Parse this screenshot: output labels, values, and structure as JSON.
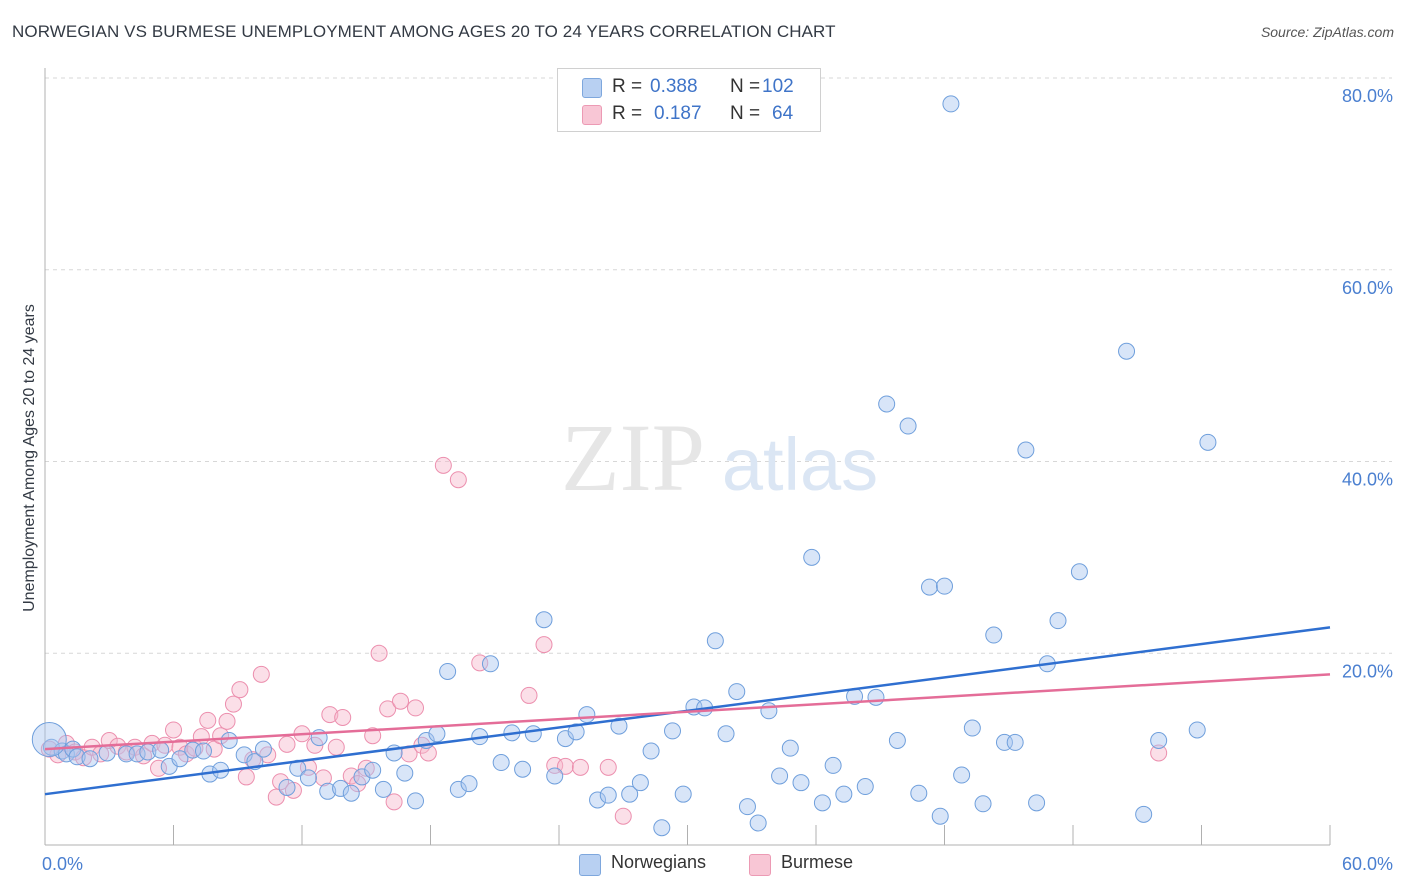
{
  "title": "NORWEGIAN VS BURMESE UNEMPLOYMENT AMONG AGES 20 TO 24 YEARS CORRELATION CHART",
  "source": "Source: ZipAtlas.com",
  "watermark": {
    "zip": "ZIP",
    "atlas": "atlas"
  },
  "legend_top": [
    {
      "r_label": "R =",
      "r_value": "0.388",
      "n_label": "N =",
      "n_value": "102"
    },
    {
      "r_label": "R =",
      "r_value": "0.187",
      "n_label": "N =",
      "n_value": "64"
    }
  ],
  "colors": {
    "norwegian_fill": "#a9c6f0",
    "norwegian_stroke": "#6f9fdc",
    "norwegian_line": "#2f6fd0",
    "burmese_fill": "#f6b8cb",
    "burmese_stroke": "#ec8fae",
    "burmese_line": "#e46d98",
    "tick_label": "#4a7fd0",
    "grid": "#d7d7d7"
  },
  "chart_data": {
    "type": "scatter",
    "title": "NORWEGIAN VS BURMESE UNEMPLOYMENT AMONG AGES 20 TO 24 YEARS CORRELATION CHART",
    "xlabel": "",
    "ylabel": "Unemployment Among Ages 20 to 24 years",
    "xlim": [
      0,
      60
    ],
    "ylim": [
      0,
      80
    ],
    "x_tick_labels": [
      "0.0%",
      "60.0%"
    ],
    "y_ticks": [
      20,
      40,
      60,
      80
    ],
    "y_tick_labels": [
      "20.0%",
      "40.0%",
      "60.0%",
      "80.0%"
    ],
    "grid": true,
    "legend_position": "bottom-center",
    "series": [
      {
        "name": "Norwegians",
        "r": 0.388,
        "n": 102,
        "trend": [
          [
            0,
            5.3
          ],
          [
            60,
            22.7
          ]
        ],
        "points": [
          [
            0.3,
            10.2
          ],
          [
            0.8,
            9.8
          ],
          [
            1.0,
            9.5
          ],
          [
            1.3,
            10.0
          ],
          [
            1.5,
            9.2
          ],
          [
            2.1,
            9.0
          ],
          [
            2.9,
            9.6
          ],
          [
            3.8,
            9.5
          ],
          [
            4.3,
            9.5
          ],
          [
            4.8,
            9.7
          ],
          [
            5.4,
            9.9
          ],
          [
            5.8,
            8.2
          ],
          [
            6.3,
            9.0
          ],
          [
            6.9,
            9.9
          ],
          [
            7.4,
            9.8
          ],
          [
            7.7,
            7.4
          ],
          [
            8.2,
            7.8
          ],
          [
            8.6,
            10.9
          ],
          [
            9.3,
            9.4
          ],
          [
            9.8,
            8.7
          ],
          [
            10.2,
            10.0
          ],
          [
            11.3,
            6.0
          ],
          [
            11.8,
            8.0
          ],
          [
            12.3,
            7.0
          ],
          [
            12.8,
            11.2
          ],
          [
            13.2,
            5.6
          ],
          [
            13.8,
            5.9
          ],
          [
            14.3,
            5.4
          ],
          [
            14.8,
            7.1
          ],
          [
            15.3,
            7.8
          ],
          [
            15.8,
            5.8
          ],
          [
            16.3,
            9.6
          ],
          [
            16.8,
            7.5
          ],
          [
            17.3,
            4.6
          ],
          [
            17.8,
            10.9
          ],
          [
            18.3,
            11.6
          ],
          [
            18.8,
            18.1
          ],
          [
            19.3,
            5.8
          ],
          [
            19.8,
            6.4
          ],
          [
            20.3,
            11.3
          ],
          [
            20.8,
            18.9
          ],
          [
            21.3,
            8.6
          ],
          [
            21.8,
            11.7
          ],
          [
            22.3,
            7.9
          ],
          [
            22.8,
            11.6
          ],
          [
            23.3,
            23.5
          ],
          [
            23.8,
            7.2
          ],
          [
            24.3,
            11.1
          ],
          [
            24.8,
            11.8
          ],
          [
            25.3,
            13.6
          ],
          [
            25.8,
            4.7
          ],
          [
            26.3,
            5.2
          ],
          [
            26.8,
            12.4
          ],
          [
            27.3,
            5.3
          ],
          [
            27.8,
            6.5
          ],
          [
            28.3,
            9.8
          ],
          [
            28.8,
            1.8
          ],
          [
            29.3,
            11.9
          ],
          [
            29.8,
            5.3
          ],
          [
            30.3,
            14.4
          ],
          [
            30.8,
            14.3
          ],
          [
            31.3,
            21.3
          ],
          [
            31.8,
            11.6
          ],
          [
            32.3,
            16.0
          ],
          [
            32.8,
            4.0
          ],
          [
            33.3,
            2.3
          ],
          [
            33.8,
            14.0
          ],
          [
            34.3,
            7.2
          ],
          [
            34.8,
            10.1
          ],
          [
            35.3,
            6.5
          ],
          [
            35.8,
            30.0
          ],
          [
            36.3,
            4.4
          ],
          [
            36.8,
            8.3
          ],
          [
            37.3,
            5.3
          ],
          [
            37.8,
            15.5
          ],
          [
            38.3,
            6.1
          ],
          [
            38.8,
            15.4
          ],
          [
            39.3,
            46.0
          ],
          [
            39.8,
            10.9
          ],
          [
            40.3,
            43.7
          ],
          [
            40.8,
            5.4
          ],
          [
            41.3,
            26.9
          ],
          [
            41.8,
            3.0
          ],
          [
            42.0,
            27.0
          ],
          [
            42.3,
            77.3
          ],
          [
            42.8,
            7.3
          ],
          [
            43.3,
            12.2
          ],
          [
            43.8,
            4.3
          ],
          [
            44.3,
            21.9
          ],
          [
            44.8,
            10.7
          ],
          [
            45.3,
            10.7
          ],
          [
            45.8,
            41.2
          ],
          [
            46.3,
            4.4
          ],
          [
            46.8,
            18.9
          ],
          [
            47.3,
            23.4
          ],
          [
            48.3,
            28.5
          ],
          [
            50.5,
            51.5
          ],
          [
            51.3,
            3.2
          ],
          [
            52.0,
            10.9
          ],
          [
            53.8,
            12.0
          ],
          [
            54.3,
            42.0
          ],
          [
            0.2,
            11.0
          ]
        ]
      },
      {
        "name": "Burmese",
        "r": 0.187,
        "n": 64,
        "trend": [
          [
            0,
            10.0
          ],
          [
            60,
            17.8
          ]
        ],
        "points": [
          [
            0.2,
            10.0
          ],
          [
            0.6,
            9.4
          ],
          [
            1.0,
            10.6
          ],
          [
            1.4,
            9.7
          ],
          [
            1.8,
            9.1
          ],
          [
            2.2,
            10.2
          ],
          [
            2.6,
            9.5
          ],
          [
            3.0,
            10.9
          ],
          [
            3.4,
            10.3
          ],
          [
            3.8,
            9.7
          ],
          [
            4.2,
            10.2
          ],
          [
            4.6,
            9.3
          ],
          [
            5.0,
            10.6
          ],
          [
            5.3,
            8.0
          ],
          [
            5.6,
            10.4
          ],
          [
            6.0,
            12.0
          ],
          [
            6.3,
            10.2
          ],
          [
            6.6,
            9.5
          ],
          [
            7.0,
            10.1
          ],
          [
            7.3,
            11.3
          ],
          [
            7.6,
            13.0
          ],
          [
            7.9,
            10.0
          ],
          [
            8.2,
            11.4
          ],
          [
            8.5,
            12.9
          ],
          [
            8.8,
            14.7
          ],
          [
            9.1,
            16.2
          ],
          [
            9.4,
            7.1
          ],
          [
            9.7,
            8.9
          ],
          [
            10.1,
            17.8
          ],
          [
            10.4,
            9.4
          ],
          [
            10.8,
            5.0
          ],
          [
            11.0,
            6.6
          ],
          [
            11.3,
            10.5
          ],
          [
            11.6,
            5.7
          ],
          [
            12.0,
            11.6
          ],
          [
            12.3,
            8.1
          ],
          [
            12.6,
            10.4
          ],
          [
            13.0,
            7.0
          ],
          [
            13.3,
            13.6
          ],
          [
            13.6,
            10.2
          ],
          [
            13.9,
            13.3
          ],
          [
            14.3,
            7.2
          ],
          [
            14.6,
            6.4
          ],
          [
            15.0,
            8.0
          ],
          [
            15.3,
            11.4
          ],
          [
            15.6,
            20.0
          ],
          [
            16.0,
            14.2
          ],
          [
            16.3,
            4.5
          ],
          [
            16.6,
            15.0
          ],
          [
            17.0,
            9.5
          ],
          [
            17.3,
            14.3
          ],
          [
            17.6,
            10.4
          ],
          [
            17.9,
            9.6
          ],
          [
            18.6,
            39.6
          ],
          [
            19.3,
            38.1
          ],
          [
            20.3,
            19.0
          ],
          [
            22.6,
            15.6
          ],
          [
            23.3,
            20.9
          ],
          [
            23.8,
            8.3
          ],
          [
            24.3,
            8.2
          ],
          [
            25.0,
            8.1
          ],
          [
            26.3,
            8.1
          ],
          [
            27.0,
            3.0
          ],
          [
            52.0,
            9.6
          ]
        ]
      }
    ]
  },
  "legend_bottom": [
    {
      "label": "Norwegians"
    },
    {
      "label": "Burmese"
    }
  ]
}
